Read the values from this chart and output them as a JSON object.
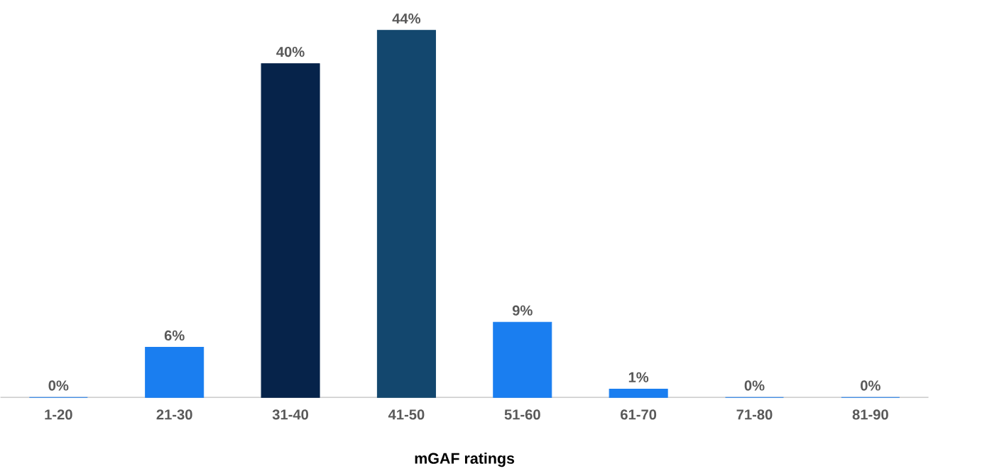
{
  "chart_data": {
    "type": "bar",
    "xlabel": "mGAF ratings",
    "categories": [
      "1-20",
      "21-30",
      "31-40",
      "41-50",
      "51-60",
      "61-70",
      "71-80",
      "81-90"
    ],
    "values": [
      0,
      6,
      40,
      44,
      9,
      1,
      0,
      0
    ],
    "value_labels": [
      "0%",
      "6%",
      "40%",
      "44%",
      "9%",
      "1%",
      "0%",
      "0%"
    ],
    "colors": [
      "#1a7ef0",
      "#1a7ef0",
      "#06234a",
      "#13476e",
      "#1a7ef0",
      "#1a7ef0",
      "#1a7ef0",
      "#1a7ef0"
    ],
    "tick_labels": "x"
  }
}
